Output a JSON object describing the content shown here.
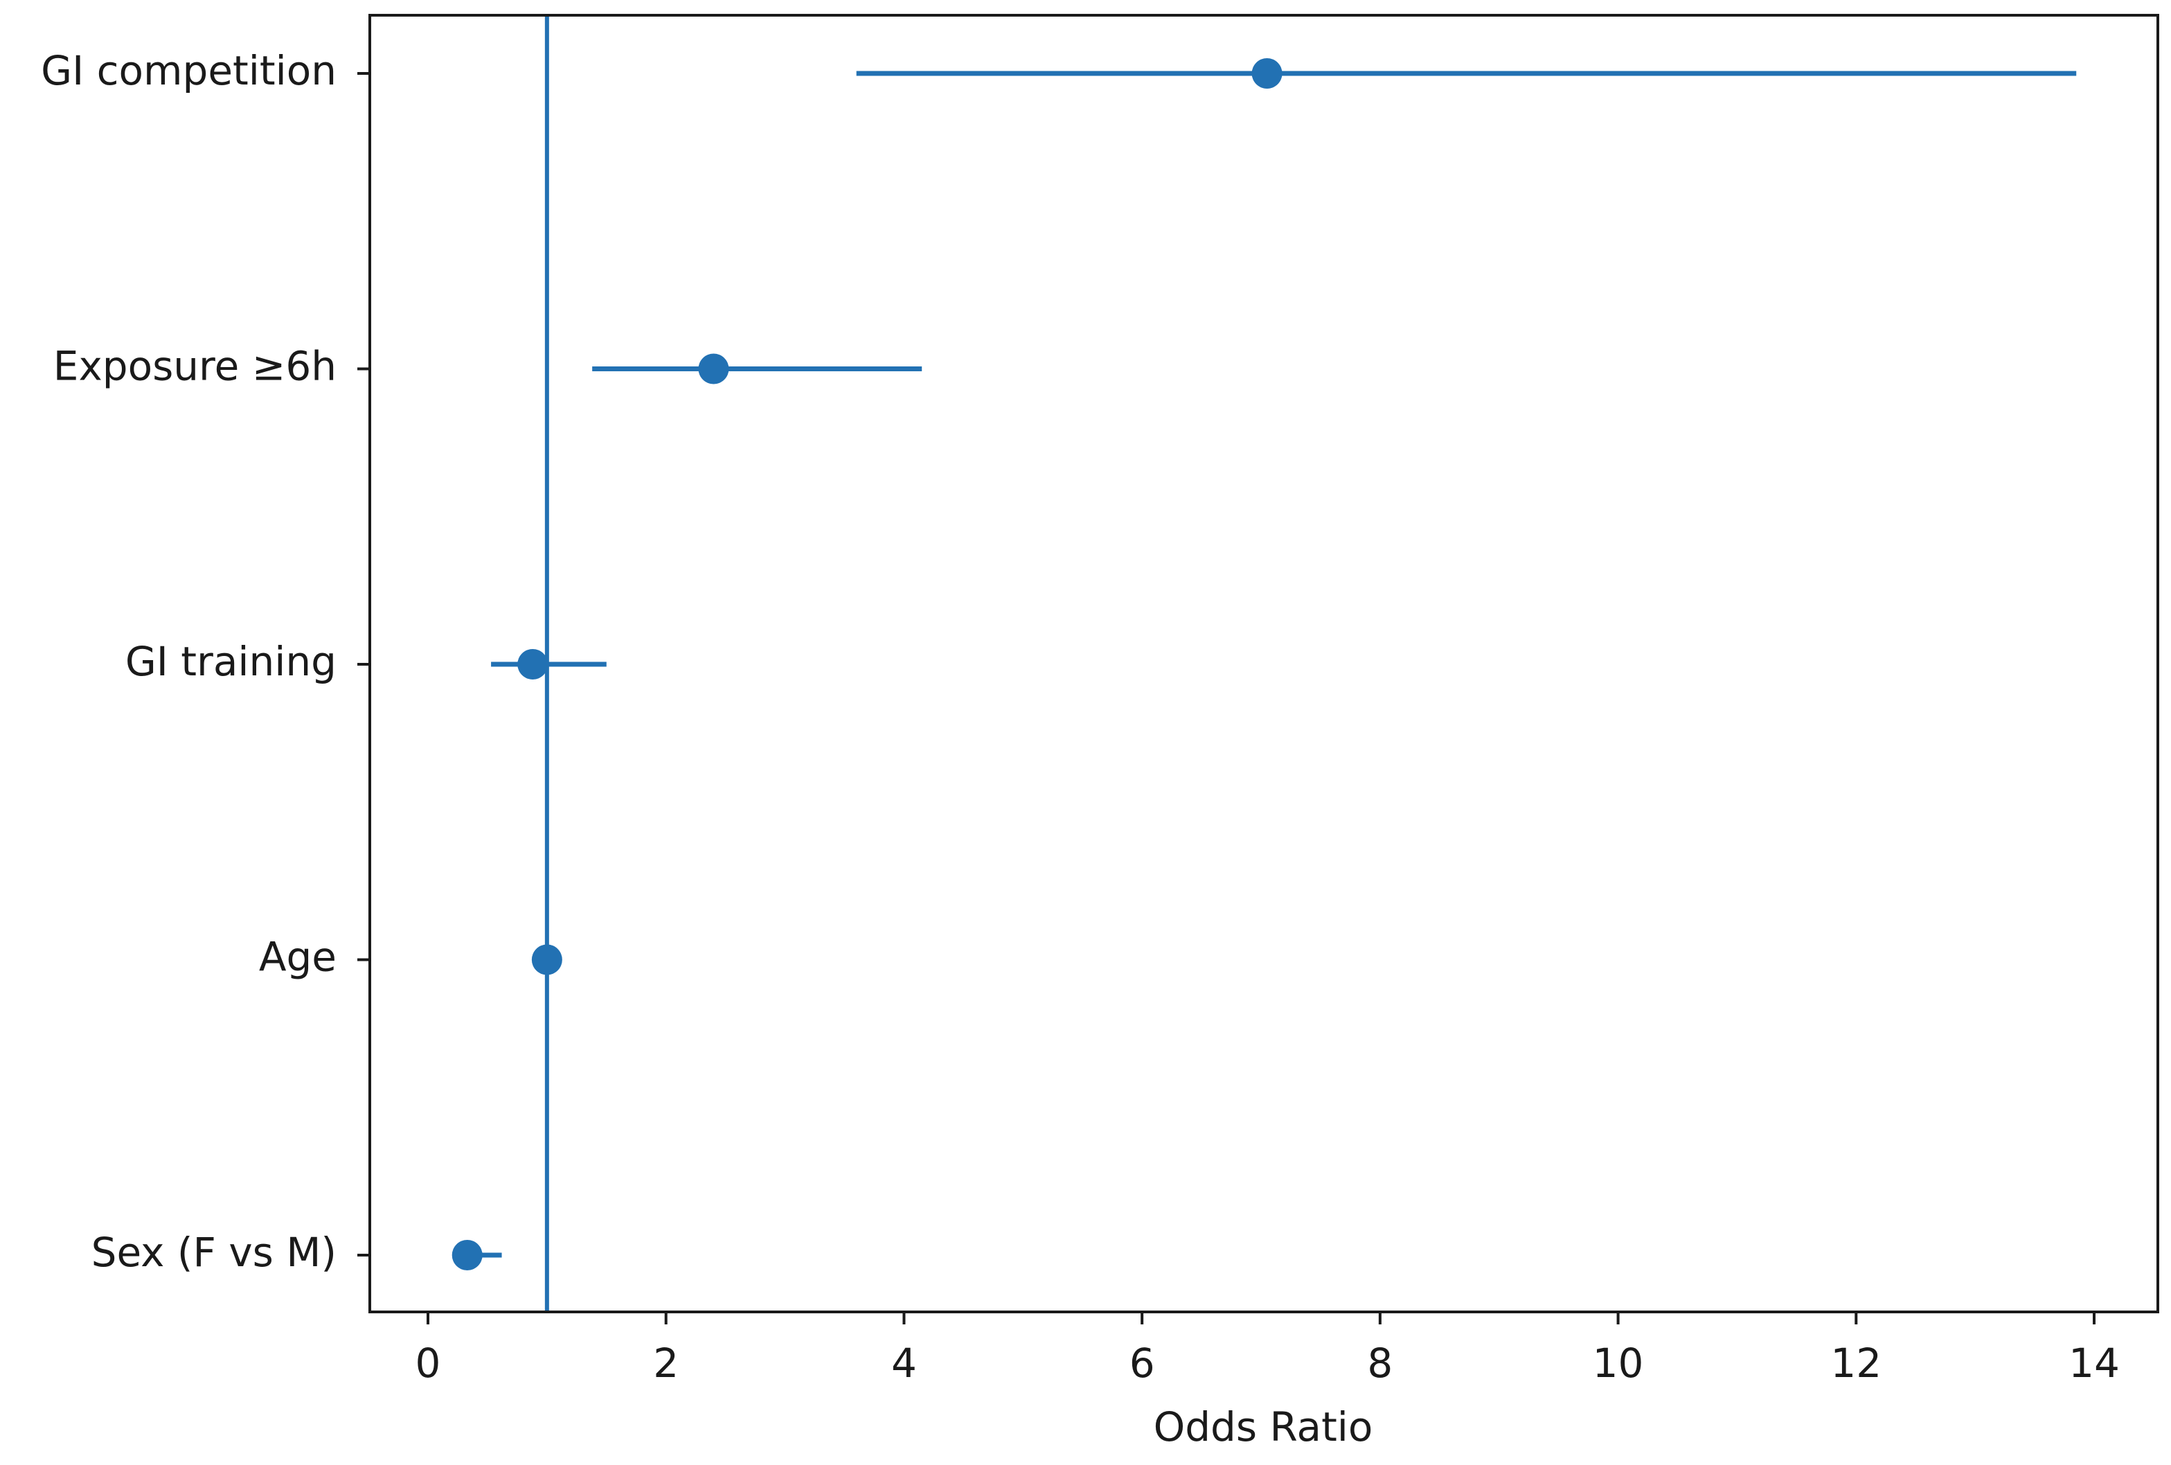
{
  "chart_data": {
    "type": "forest",
    "title": "",
    "xlabel": "Odds Ratio",
    "ylabel": "",
    "xlim": [
      -0.5,
      14.55
    ],
    "xticks": [
      0,
      2,
      4,
      6,
      8,
      10,
      12,
      14
    ],
    "tick_labels": [
      "0",
      "2",
      "4",
      "6",
      "8",
      "10",
      "12",
      "14"
    ],
    "reference_line": 1,
    "grid": false,
    "legend": "none",
    "color": "#2271b3",
    "categories": [
      "GI competition",
      "Exposure ≥6h",
      "GI training",
      "Age",
      "Sex (F vs M)"
    ],
    "estimates": [
      7.05,
      2.4,
      0.88,
      1.0,
      0.33
    ],
    "ci_lower": [
      3.6,
      1.38,
      0.53,
      0.98,
      0.22
    ],
    "ci_upper": [
      13.85,
      4.15,
      1.5,
      1.02,
      0.62
    ]
  }
}
